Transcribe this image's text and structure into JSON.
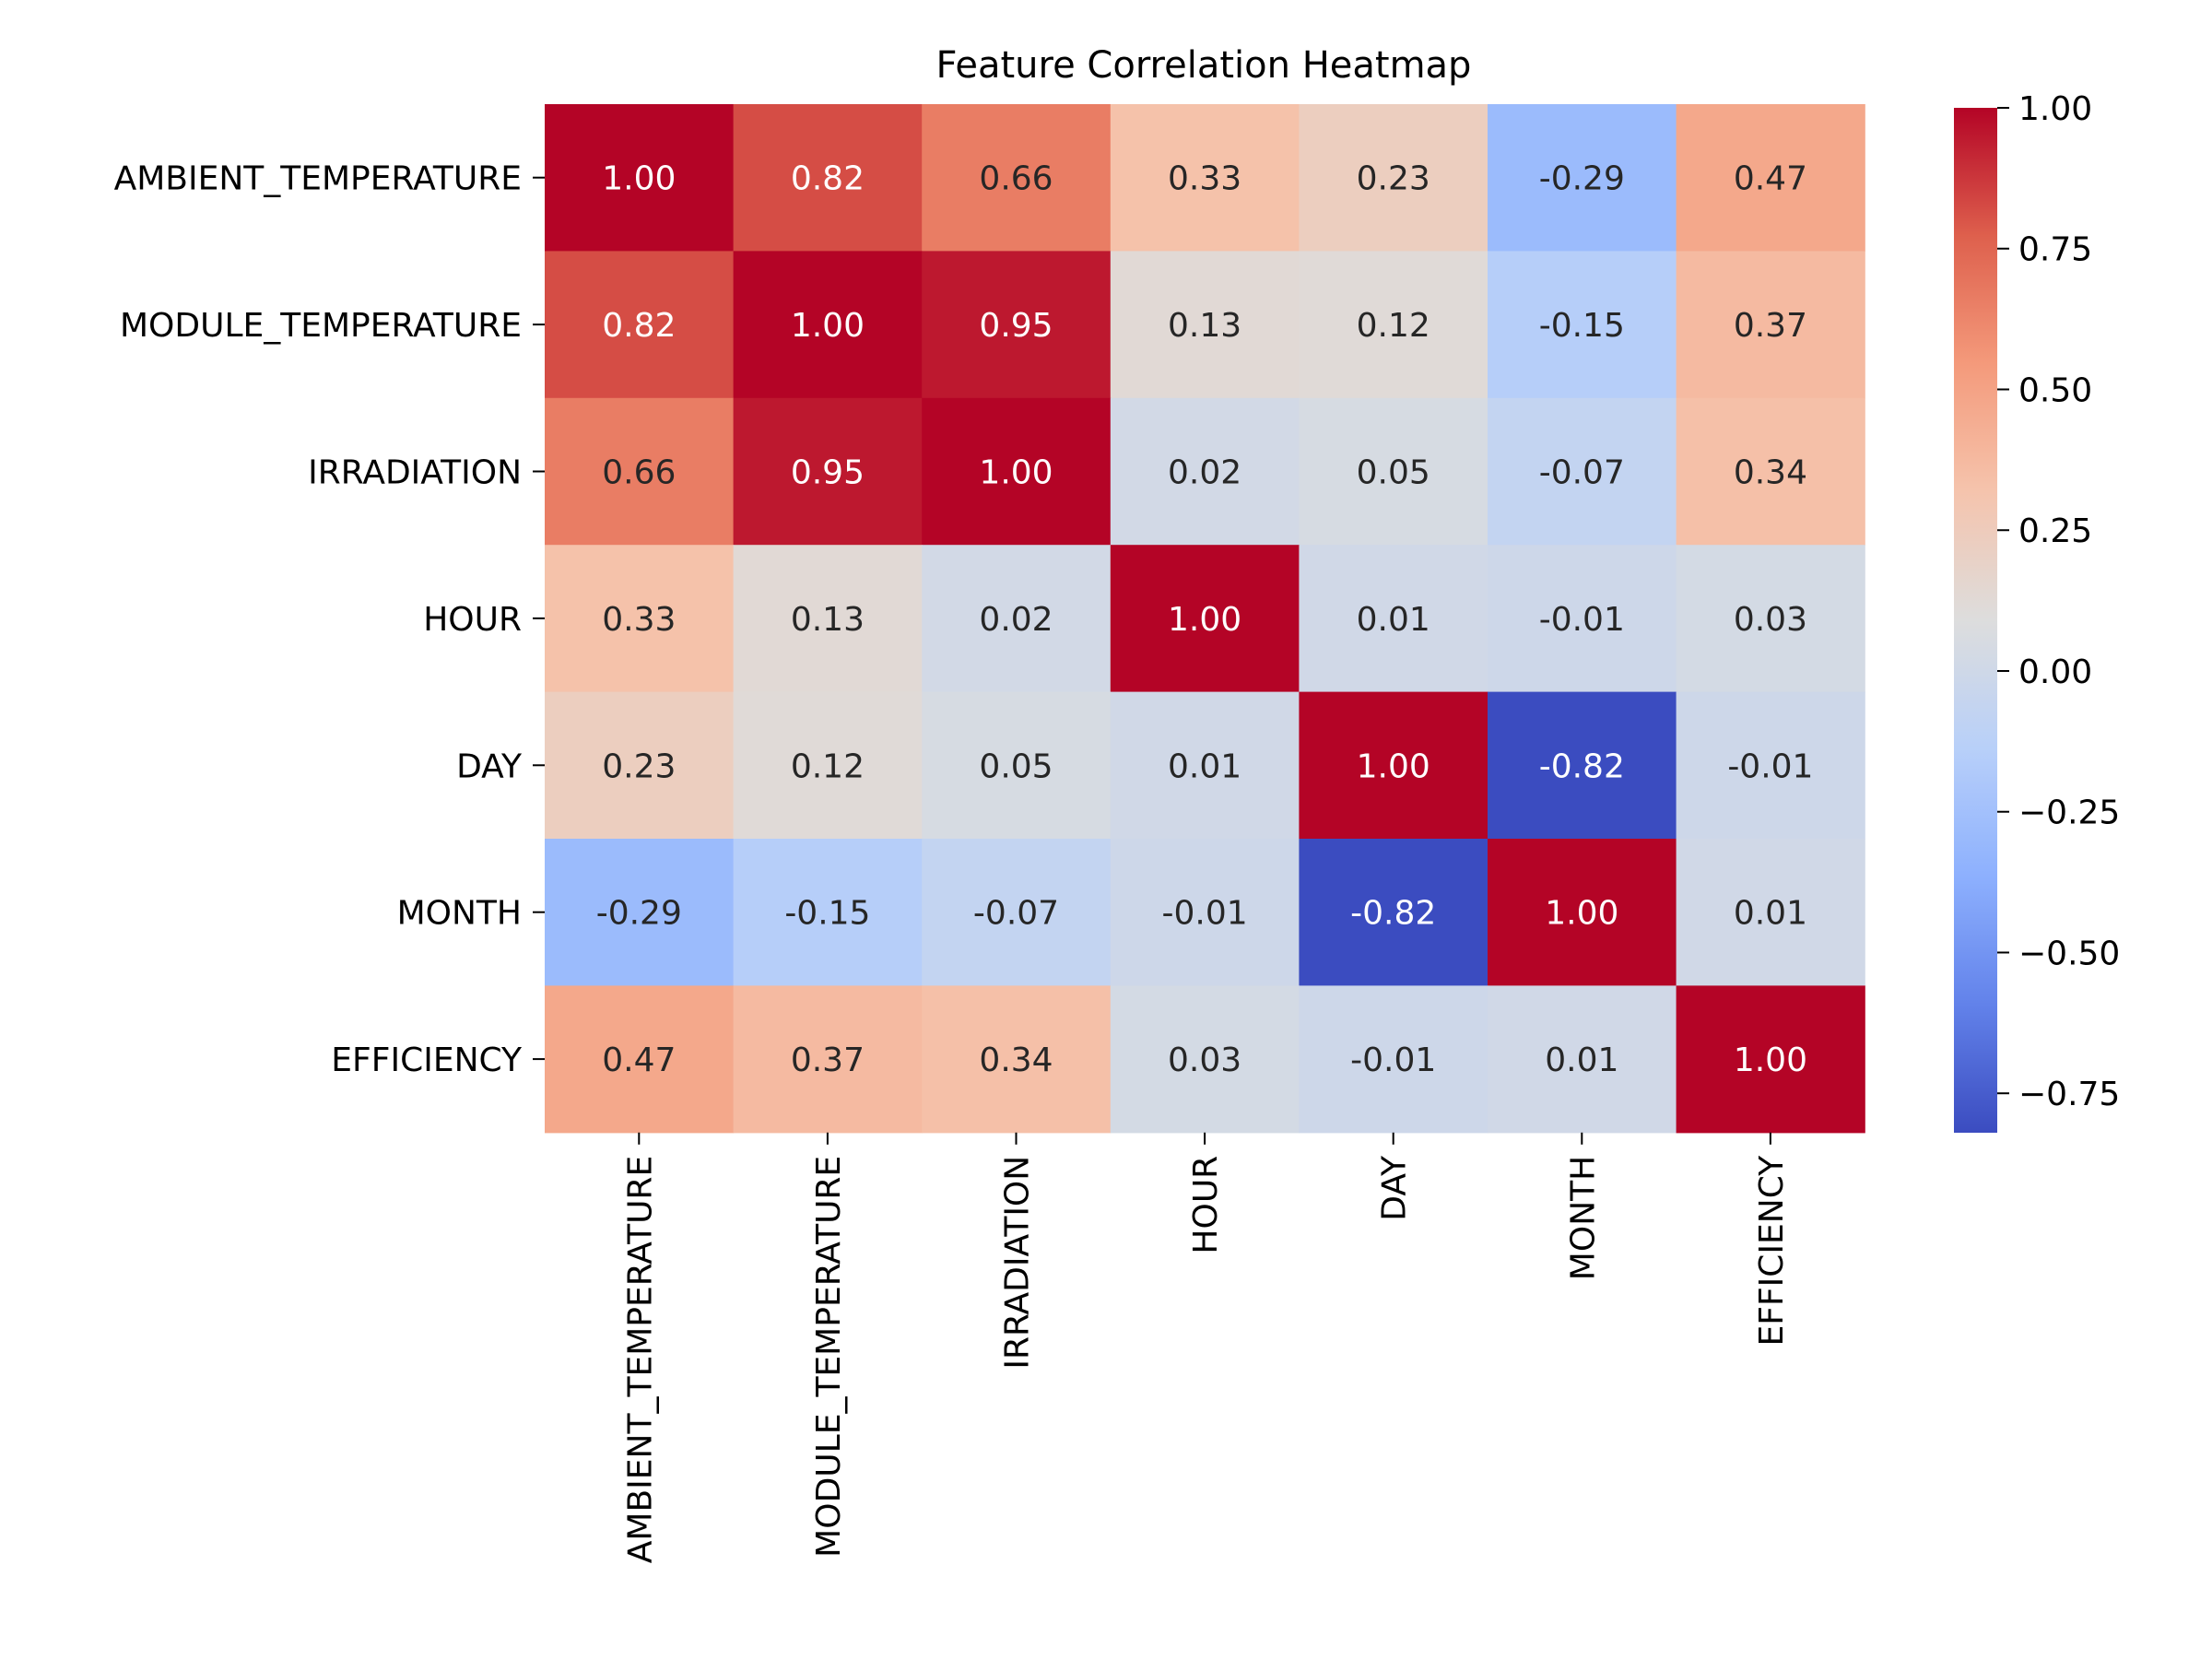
{
  "chart_data": {
    "type": "heatmap",
    "title": "Feature Correlation Heatmap",
    "rows": [
      "AMBIENT_TEMPERATURE",
      "MODULE_TEMPERATURE",
      "IRRADIATION",
      "HOUR",
      "DAY",
      "MONTH",
      "EFFICIENCY"
    ],
    "columns": [
      "AMBIENT_TEMPERATURE",
      "MODULE_TEMPERATURE",
      "IRRADIATION",
      "HOUR",
      "DAY",
      "MONTH",
      "EFFICIENCY"
    ],
    "values": [
      [
        1.0,
        0.82,
        0.66,
        0.33,
        0.23,
        -0.29,
        0.47
      ],
      [
        0.82,
        1.0,
        0.95,
        0.13,
        0.12,
        -0.15,
        0.37
      ],
      [
        0.66,
        0.95,
        1.0,
        0.02,
        0.05,
        -0.07,
        0.34
      ],
      [
        0.33,
        0.13,
        0.02,
        1.0,
        0.01,
        -0.01,
        0.03
      ],
      [
        0.23,
        0.12,
        0.05,
        0.01,
        1.0,
        -0.82,
        -0.01
      ],
      [
        -0.29,
        -0.15,
        -0.07,
        -0.01,
        -0.82,
        1.0,
        0.01
      ],
      [
        0.47,
        0.37,
        0.34,
        0.03,
        -0.01,
        0.01,
        1.0
      ]
    ],
    "value_format": "0.00",
    "colormap": "coolwarm",
    "colorbar": {
      "range": [
        -0.82,
        1.0
      ],
      "ticks": [
        1.0,
        0.75,
        0.5,
        0.25,
        0.0,
        -0.25,
        -0.5,
        -0.75
      ],
      "tick_labels": [
        "1.00",
        "0.75",
        "0.50",
        "0.25",
        "0.00",
        "−0.25",
        "−0.50",
        "−0.75"
      ]
    }
  }
}
